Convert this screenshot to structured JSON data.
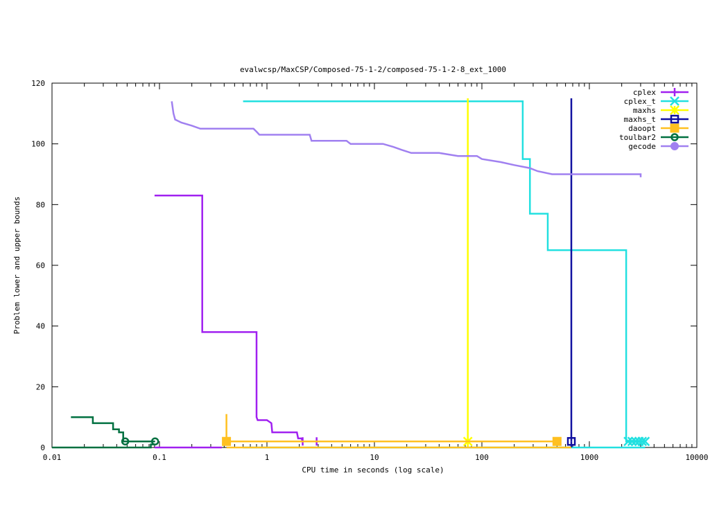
{
  "chart_data": {
    "type": "line",
    "title": "evalwcsp/MaxCSP/Composed-75-1-2/composed-75-1-2-8_ext_1000",
    "xlabel": "CPU time in seconds (log scale)",
    "ylabel": "Problem lower and upper bounds",
    "xscale": "log",
    "xlim": [
      0.01,
      10000
    ],
    "ylim": [
      0,
      120
    ],
    "xticks": [
      0.01,
      0.1,
      1,
      10,
      100,
      1000,
      10000
    ],
    "xtick_labels": [
      "0.01",
      "0.1",
      "1",
      "10",
      "100",
      "1000",
      "10000"
    ],
    "yticks": [
      0,
      20,
      40,
      60,
      80,
      100,
      120
    ],
    "ytick_labels": [
      "0",
      "20",
      "40",
      "60",
      "80",
      "100",
      "120"
    ],
    "legend_position": "top-right",
    "series": [
      {
        "name": "cplex",
        "color": "#a020f0",
        "marker": "plus",
        "upper": [
          [
            0.09,
            83
          ],
          [
            0.25,
            83
          ],
          [
            0.25,
            38
          ],
          [
            0.8,
            38
          ],
          [
            0.8,
            10
          ],
          [
            0.82,
            9
          ],
          [
            1.0,
            9
          ],
          [
            1.1,
            8
          ],
          [
            1.12,
            5
          ],
          [
            1.9,
            5
          ],
          [
            1.95,
            3
          ],
          [
            2.1,
            3
          ],
          [
            2.15,
            2
          ],
          [
            2.9,
            2
          ]
        ],
        "lower": [
          [
            0.09,
            0
          ],
          [
            0.38,
            0
          ]
        ],
        "markers": [
          [
            2.15,
            2
          ],
          [
            2.9,
            2
          ]
        ]
      },
      {
        "name": "cplex_t",
        "color": "#22e0e0",
        "marker": "x",
        "upper": [
          [
            0.6,
            114
          ],
          [
            240,
            114
          ],
          [
            240,
            95
          ],
          [
            280,
            95
          ],
          [
            280,
            77
          ],
          [
            410,
            77
          ],
          [
            410,
            65
          ],
          [
            2200,
            65
          ],
          [
            2200,
            2
          ],
          [
            3300,
            2
          ]
        ],
        "lower": [
          [
            0.6,
            0
          ],
          [
            3300,
            0
          ]
        ],
        "markers": [
          [
            2300,
            2
          ],
          [
            2500,
            2
          ],
          [
            2700,
            2
          ],
          [
            2900,
            2
          ],
          [
            3100,
            2
          ],
          [
            3300,
            2
          ]
        ]
      },
      {
        "name": "maxhs",
        "color": "#ffff00",
        "marker": "star",
        "upper": [
          [
            74,
            115
          ],
          [
            74,
            2
          ]
        ],
        "lower": [
          [
            74,
            0
          ],
          [
            74,
            2
          ]
        ],
        "markers": [
          [
            74,
            2
          ]
        ]
      },
      {
        "name": "maxhs_t",
        "color": "#1010a0",
        "marker": "square",
        "upper": [
          [
            680,
            115
          ],
          [
            680,
            2
          ]
        ],
        "lower": [
          [
            680,
            0
          ],
          [
            680,
            2
          ]
        ],
        "markers": [
          [
            680,
            2
          ]
        ]
      },
      {
        "name": "daoopt",
        "color": "#ffc020",
        "marker": "filled-square",
        "upper": [
          [
            0.42,
            11
          ],
          [
            0.42,
            2
          ],
          [
            500,
            2
          ]
        ],
        "lower": [
          [
            0.42,
            0
          ],
          [
            680,
            0
          ]
        ],
        "markers": [
          [
            0.42,
            2
          ],
          [
            500,
            2
          ]
        ]
      },
      {
        "name": "toulbar2",
        "color": "#007040",
        "marker": "circle",
        "upper": [
          [
            0.015,
            10
          ],
          [
            0.024,
            10
          ],
          [
            0.024,
            8
          ],
          [
            0.037,
            8
          ],
          [
            0.037,
            6
          ],
          [
            0.042,
            6
          ],
          [
            0.042,
            5
          ],
          [
            0.046,
            5
          ],
          [
            0.046,
            2
          ],
          [
            0.091,
            2
          ]
        ],
        "lower": [
          [
            0.01,
            0
          ],
          [
            0.083,
            0
          ],
          [
            0.083,
            1
          ],
          [
            0.091,
            1
          ]
        ],
        "markers": [
          [
            0.048,
            2
          ],
          [
            0.091,
            2
          ]
        ]
      },
      {
        "name": "gecode",
        "color": "#a080f0",
        "marker": "filled-circle",
        "upper": [
          [
            0.13,
            114
          ],
          [
            0.135,
            110
          ],
          [
            0.14,
            108
          ],
          [
            0.16,
            107
          ],
          [
            0.2,
            106
          ],
          [
            0.24,
            105
          ],
          [
            0.75,
            105
          ],
          [
            0.8,
            104
          ],
          [
            0.85,
            103
          ],
          [
            2.5,
            103
          ],
          [
            2.6,
            101
          ],
          [
            5.5,
            101
          ],
          [
            6.0,
            100
          ],
          [
            12,
            100
          ],
          [
            15,
            99
          ],
          [
            18,
            98
          ],
          [
            22,
            97
          ],
          [
            40,
            97
          ],
          [
            60,
            96
          ],
          [
            90,
            96
          ],
          [
            100,
            95
          ],
          [
            150,
            94
          ],
          [
            200,
            93
          ],
          [
            280,
            92
          ],
          [
            330,
            91
          ],
          [
            450,
            90
          ],
          [
            3000,
            90
          ],
          [
            3000,
            89
          ]
        ],
        "lower": [],
        "markers": []
      }
    ]
  }
}
